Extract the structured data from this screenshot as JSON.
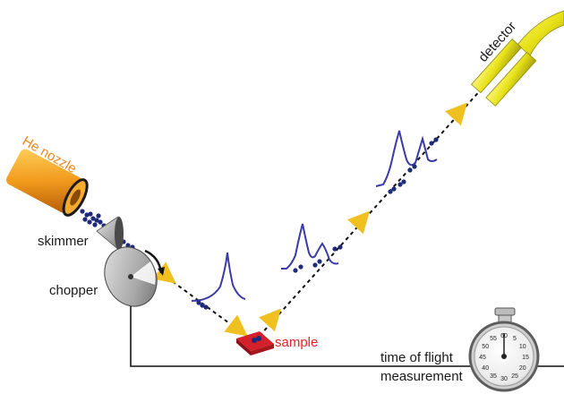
{
  "labels": {
    "nozzle": "He nozzle",
    "skimmer": "skimmer",
    "chopper": "chopper",
    "sample": "sample",
    "detector": "detector",
    "tof_line1": "time of flight",
    "tof_line2": "measurement"
  },
  "stopwatch": {
    "dial_numbers": [
      "60",
      "5",
      "10",
      "15",
      "20",
      "25",
      "30",
      "35",
      "40",
      "45",
      "50",
      "55"
    ]
  },
  "colors": {
    "nozzle_label": "#f0861a",
    "sample_label": "#e0242a",
    "nozzle_body": "#f29a1c",
    "detector_body": "#e8e21a",
    "beam_particles": "#1e2a7a",
    "waveform": "#3a3aa8",
    "arrow": "#f0c020",
    "sample_block": "#d3202a"
  }
}
